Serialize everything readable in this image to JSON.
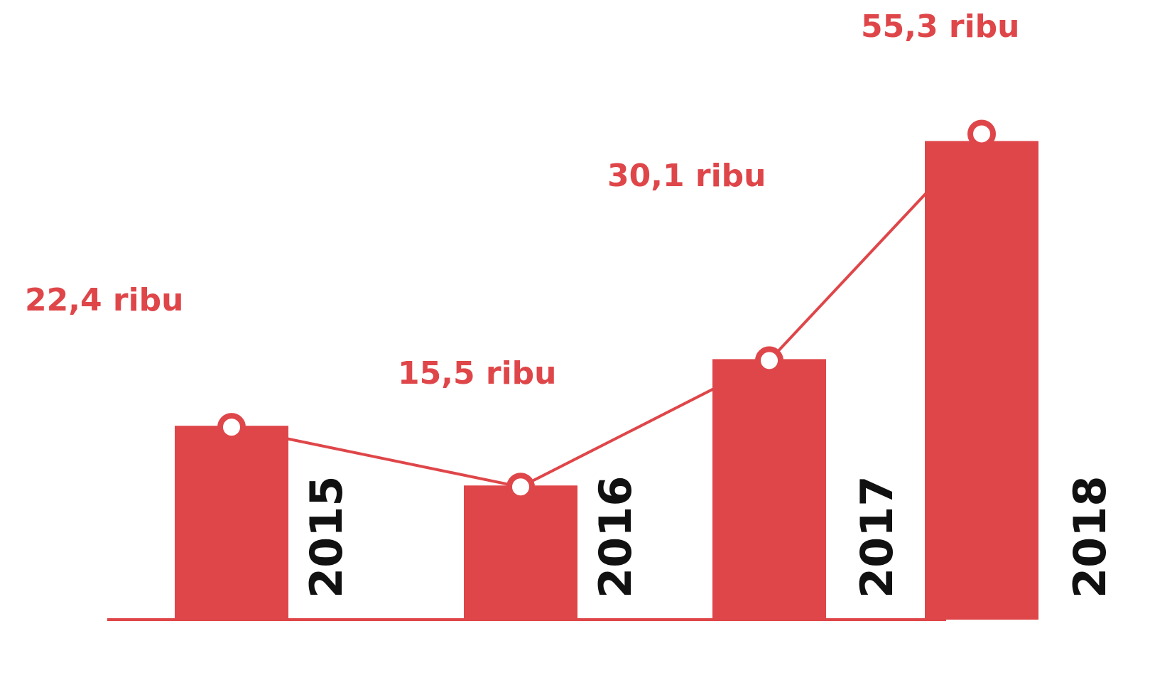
{
  "chart_data": {
    "type": "bar",
    "categories": [
      "2015",
      "2016",
      "2017",
      "2018"
    ],
    "values": [
      22.4,
      15.5,
      30.1,
      55.3
    ],
    "value_labels": [
      "22,4 ribu",
      "15,5 ribu",
      "30,1 ribu",
      "55,3 ribu"
    ],
    "overlay": "line",
    "title": "",
    "xlabel": "",
    "ylabel": "",
    "grid": false,
    "legend": "none",
    "colors": {
      "bar": "#df4649",
      "line": "#df4649",
      "marker_fill": "#ffffff",
      "label": "#df4649",
      "year": "#111111"
    }
  }
}
